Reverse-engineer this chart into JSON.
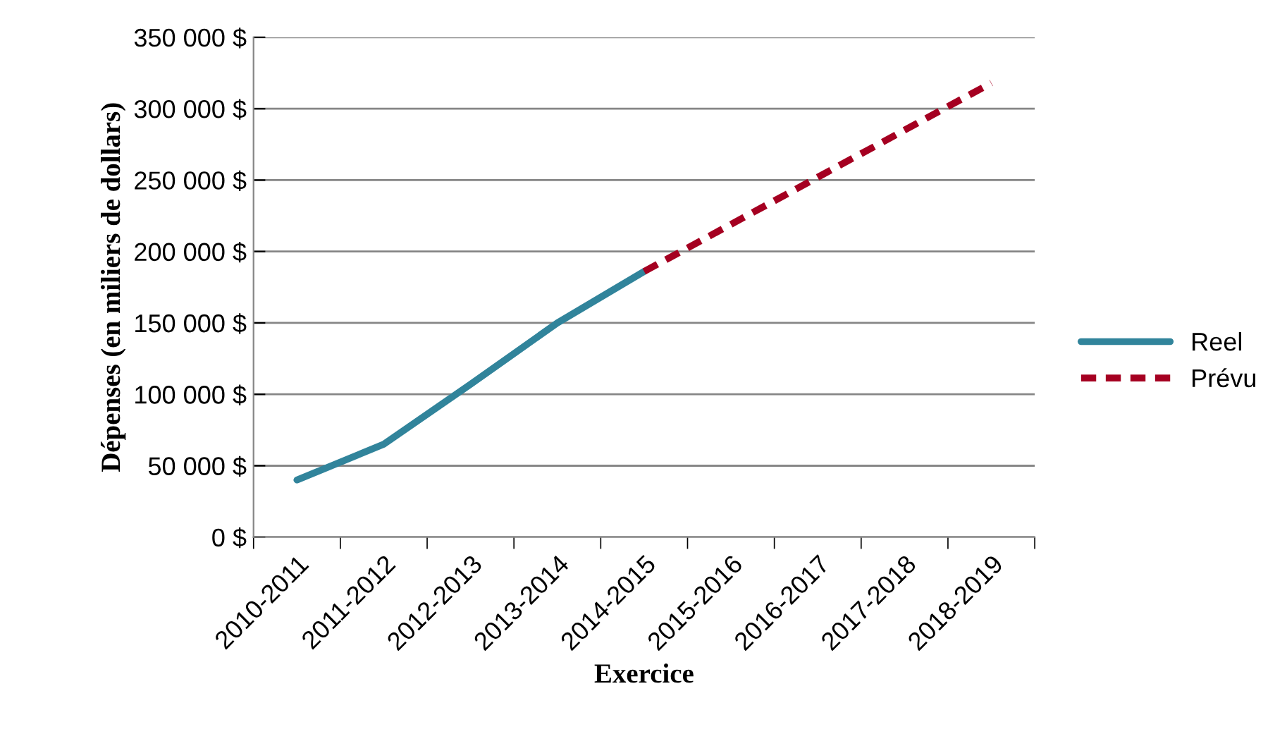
{
  "chart_data": {
    "type": "line",
    "xlabel": "Exercice",
    "ylabel": "Dépenses (en miliers de dollars)",
    "categories": [
      "2010-2011",
      "2011-2012",
      "2012-2013",
      "2013-2014",
      "2014-2015",
      "2015-2016",
      "2016-2017",
      "2017-2018",
      "2018-2019"
    ],
    "series": [
      {
        "name": "Reel",
        "color": "#31849b",
        "line_style": "solid",
        "values": [
          40000,
          65000,
          107000,
          150000,
          186000,
          null,
          null,
          null,
          null
        ]
      },
      {
        "name": "Prévu",
        "color": "#a50021",
        "line_style": "dashed",
        "values": [
          null,
          null,
          null,
          null,
          186000,
          219000,
          252000,
          285000,
          318000
        ]
      }
    ],
    "ylim": [
      0,
      350000
    ],
    "yticks": [
      {
        "value": 0,
        "label": "0 $"
      },
      {
        "value": 50000,
        "label": "50 000 $"
      },
      {
        "value": 100000,
        "label": "100 000 $"
      },
      {
        "value": 150000,
        "label": "150 000 $"
      },
      {
        "value": 200000,
        "label": "200 000 $"
      },
      {
        "value": 250000,
        "label": "250 000 $"
      },
      {
        "value": 300000,
        "label": "300 000 $"
      },
      {
        "value": 350000,
        "label": "350 000 $"
      }
    ],
    "grid": "y",
    "legend": "right",
    "marker": "none"
  }
}
